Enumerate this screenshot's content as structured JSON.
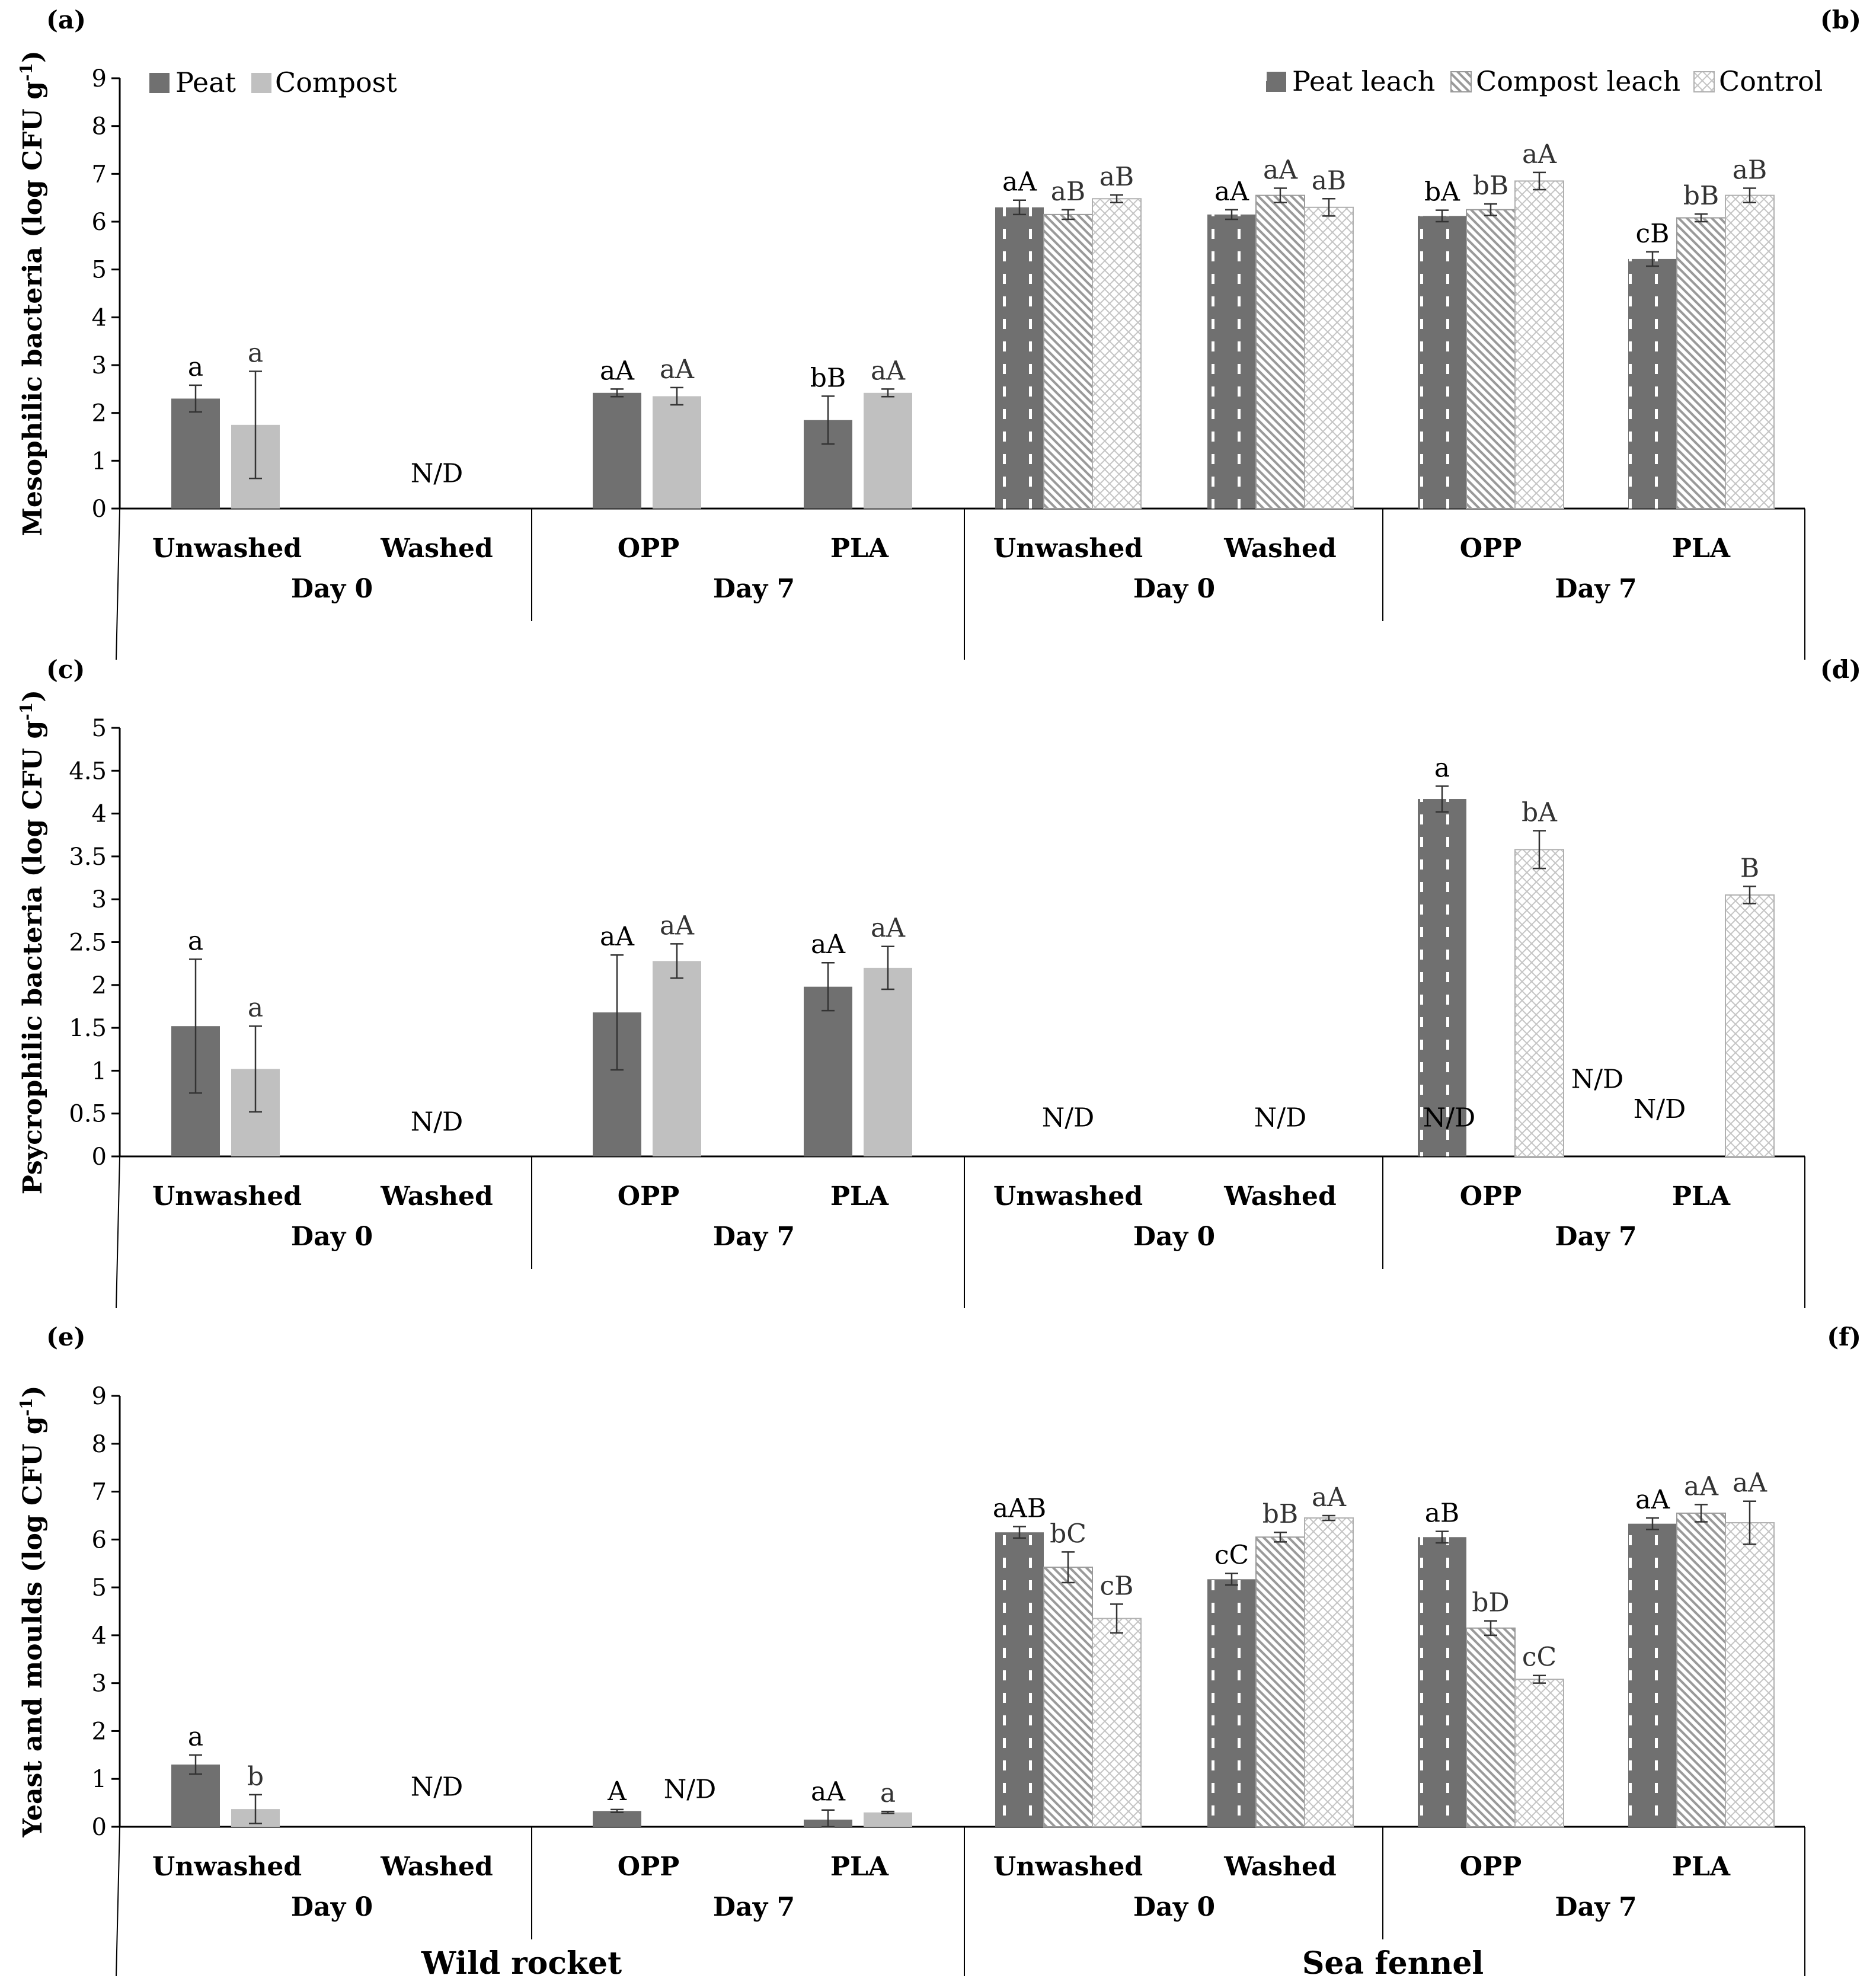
{
  "legend_left": [
    "Peat",
    "Compost"
  ],
  "legend_right": [
    "Peat leach",
    "Compost leach",
    "Control"
  ],
  "species": [
    "Wild rocket",
    "Sea fennel"
  ],
  "nd_label": "N/D",
  "chart_data": [
    {
      "type": "bar",
      "panels": [
        "(a)",
        "(b)"
      ],
      "ylabel": "Mesophilic bacteria (log CFU g-1)",
      "ylim": [
        0,
        9
      ],
      "ystep": 1,
      "yticks": [
        "0",
        "1",
        "2",
        "3",
        "4",
        "5",
        "6",
        "7",
        "8",
        "9"
      ],
      "categories": [
        "Unwashed",
        "Washed",
        "OPP",
        "PLA",
        "Unwashed",
        "Washed",
        "OPP",
        "PLA"
      ],
      "days": [
        "Day 0",
        "Day 7",
        "Day 0",
        "Day 7"
      ],
      "series": [
        {
          "name": "Peat",
          "values": [
            2.3,
            null,
            2.42,
            1.85,
            null,
            null,
            null,
            null
          ],
          "err": [
            0.28,
            null,
            0.08,
            0.5,
            null,
            null,
            null,
            null
          ],
          "labels": [
            "a",
            "",
            "aA",
            "bB",
            "",
            "",
            "",
            ""
          ]
        },
        {
          "name": "Compost",
          "values": [
            1.75,
            null,
            2.35,
            2.42,
            null,
            null,
            null,
            null
          ],
          "err": [
            1.12,
            null,
            0.18,
            0.08,
            null,
            null,
            null,
            null
          ],
          "labels": [
            "a",
            "",
            "aA",
            "aA",
            "",
            "",
            "",
            ""
          ]
        },
        {
          "name": "Peat leach",
          "values": [
            null,
            null,
            null,
            null,
            6.3,
            6.15,
            6.12,
            5.22
          ],
          "err": [
            null,
            null,
            null,
            null,
            0.15,
            0.1,
            0.12,
            0.15
          ],
          "labels": [
            "",
            "",
            "",
            "",
            "aA",
            "aA",
            "bA",
            "cB"
          ]
        },
        {
          "name": "Compost leach",
          "values": [
            null,
            null,
            null,
            null,
            6.15,
            6.55,
            6.25,
            6.08
          ],
          "err": [
            null,
            null,
            null,
            null,
            0.1,
            0.15,
            0.12,
            0.08
          ],
          "labels": [
            "",
            "",
            "",
            "",
            "aB",
            "aA",
            "bB",
            "bB"
          ]
        },
        {
          "name": "Control",
          "values": [
            null,
            null,
            null,
            null,
            6.48,
            6.3,
            6.85,
            6.55
          ],
          "err": [
            null,
            null,
            null,
            null,
            0.08,
            0.18,
            0.18,
            0.15
          ],
          "labels": [
            "",
            "",
            "",
            "",
            "aB",
            "aB",
            "aA",
            "aB"
          ]
        }
      ],
      "nd": [
        {
          "cat": 1,
          "y": 0.55
        }
      ]
    },
    {
      "type": "bar",
      "panels": [
        "(c)",
        "(d)"
      ],
      "ylabel": "Psycrophilic bacteria (log CFU g-1)",
      "ylim": [
        0,
        5
      ],
      "ystep": 0.5,
      "yticks": [
        "0",
        "0.5",
        "1",
        "1.5",
        "2",
        "2.5",
        "3",
        "3.5",
        "4",
        "4.5",
        "5"
      ],
      "categories": [
        "Unwashed",
        "Washed",
        "OPP",
        "PLA",
        "Unwashed",
        "Washed",
        "OPP",
        "PLA"
      ],
      "days": [
        "Day 0",
        "Day 7",
        "Day 0",
        "Day 7"
      ],
      "series": [
        {
          "name": "Peat",
          "values": [
            1.52,
            null,
            1.68,
            1.98,
            null,
            null,
            null,
            null
          ],
          "err": [
            0.78,
            null,
            0.67,
            0.28,
            null,
            null,
            null,
            null
          ],
          "labels": [
            "a",
            "",
            "aA",
            "aA",
            "",
            "",
            "",
            ""
          ]
        },
        {
          "name": "Compost",
          "values": [
            1.02,
            null,
            2.28,
            2.2,
            null,
            null,
            null,
            null
          ],
          "err": [
            0.5,
            null,
            0.2,
            0.25,
            null,
            null,
            null,
            null
          ],
          "labels": [
            "a",
            "",
            "aA",
            "aA",
            "",
            "",
            "",
            ""
          ]
        },
        {
          "name": "Peat leach",
          "values": [
            null,
            null,
            null,
            null,
            null,
            null,
            4.17,
            null
          ],
          "err": [
            null,
            null,
            null,
            null,
            null,
            null,
            0.15,
            null
          ],
          "labels": [
            "",
            "",
            "",
            "",
            "",
            "",
            "a",
            ""
          ]
        },
        {
          "name": "Compost leach",
          "values": [
            null,
            null,
            null,
            null,
            null,
            null,
            null,
            null
          ],
          "err": [
            null,
            null,
            null,
            null,
            null,
            null,
            null,
            null
          ],
          "labels": [
            "",
            "",
            "",
            "",
            "",
            "",
            "",
            ""
          ]
        },
        {
          "name": "Control",
          "values": [
            null,
            null,
            null,
            null,
            null,
            null,
            3.58,
            3.05
          ],
          "err": [
            null,
            null,
            null,
            null,
            null,
            null,
            0.22,
            0.1
          ],
          "labels": [
            "",
            "",
            "",
            "",
            "",
            "",
            "bA",
            "B"
          ]
        }
      ],
      "nd": [
        {
          "cat": 1,
          "y": 0.3
        },
        {
          "cat": 4,
          "y": 0.35
        },
        {
          "cat": 5,
          "y": 0.35
        },
        {
          "cat": 6,
          "y": 0.35,
          "dx": -0.5
        },
        {
          "cat": 7,
          "y": 0.8,
          "dx": -1.25
        },
        {
          "cat": 7,
          "y": 0.45,
          "dx": -0.5
        }
      ]
    },
    {
      "type": "bar",
      "panels": [
        "(e)",
        "(f)"
      ],
      "ylabel": "Yeast and moulds (log CFU g-1)",
      "ylim": [
        0,
        9
      ],
      "ystep": 1,
      "yticks": [
        "0",
        "1",
        "2",
        "3",
        "4",
        "5",
        "6",
        "7",
        "8",
        "9"
      ],
      "categories": [
        "Unwashed",
        "Washed",
        "OPP",
        "PLA",
        "Unwashed",
        "Washed",
        "OPP",
        "PLA"
      ],
      "days": [
        "Day 0",
        "Day 7",
        "Day 0",
        "Day 7"
      ],
      "series": [
        {
          "name": "Peat",
          "values": [
            1.3,
            null,
            0.33,
            0.15,
            null,
            null,
            null,
            null
          ],
          "err": [
            0.2,
            null,
            0.03,
            0.2,
            null,
            null,
            null,
            null
          ],
          "labels": [
            "a",
            "",
            "A",
            "aA",
            "",
            "",
            "",
            ""
          ]
        },
        {
          "name": "Compost",
          "values": [
            0.37,
            null,
            null,
            0.3,
            null,
            null,
            null,
            null
          ],
          "err": [
            0.3,
            null,
            null,
            0.02,
            null,
            null,
            null,
            null
          ],
          "labels": [
            "b",
            "",
            "",
            "a",
            "",
            "",
            "",
            ""
          ]
        },
        {
          "name": "Peat leach",
          "values": [
            null,
            null,
            null,
            null,
            6.15,
            5.17,
            6.05,
            6.33
          ],
          "err": [
            null,
            null,
            null,
            null,
            0.12,
            0.12,
            0.12,
            0.12
          ],
          "labels": [
            "",
            "",
            "",
            "",
            "aAB",
            "cC",
            "aB",
            "aA"
          ]
        },
        {
          "name": "Compost leach",
          "values": [
            null,
            null,
            null,
            null,
            5.42,
            6.05,
            4.15,
            6.55
          ],
          "err": [
            null,
            null,
            null,
            null,
            0.32,
            0.1,
            0.15,
            0.18
          ],
          "labels": [
            "",
            "",
            "",
            "",
            "bC",
            "bB",
            "bD",
            "aA"
          ]
        },
        {
          "name": "Control",
          "values": [
            null,
            null,
            null,
            null,
            4.35,
            6.45,
            3.08,
            6.35
          ],
          "err": [
            null,
            null,
            null,
            null,
            0.3,
            0.05,
            0.08,
            0.45
          ],
          "labels": [
            "",
            "",
            "",
            "",
            "cB",
            "aA",
            "cC",
            "aA"
          ]
        }
      ],
      "nd": [
        {
          "cat": 1,
          "y": 0.65
        },
        {
          "cat": 2,
          "y": 0.6,
          "dx": 0.5
        }
      ]
    }
  ]
}
